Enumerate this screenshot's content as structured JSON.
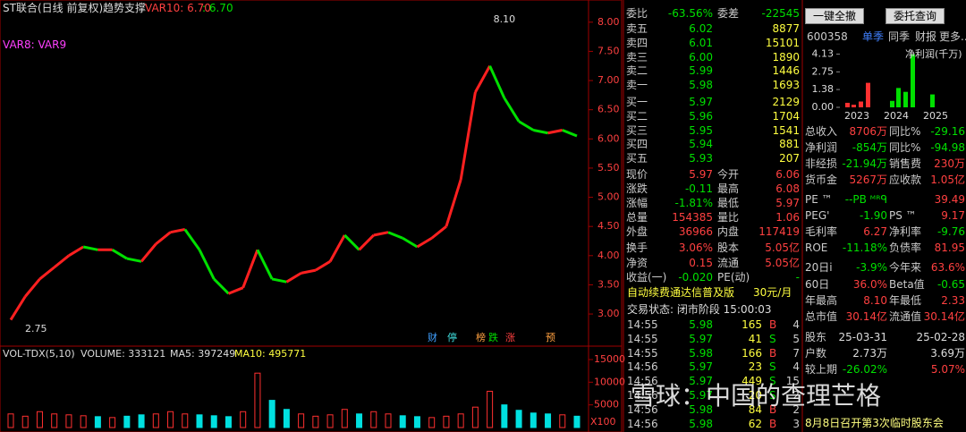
{
  "chart_header": {
    "title": "ST联合(日线 前复权)",
    "indicator": "趋势支撑",
    "var10": "VAR10: 6.70",
    "var10b": ": 6.70",
    "vars": "VAR8: VAR9"
  },
  "price_chart": {
    "type": "line",
    "ylim": [
      2.48,
      8.38
    ],
    "yticks": [
      {
        "value": 8,
        "label": "8.00"
      },
      {
        "value": 7.5,
        "label": "7.50"
      },
      {
        "value": 7,
        "label": "7.00"
      },
      {
        "value": 6.5,
        "label": "6.50"
      },
      {
        "value": 6,
        "label": "6.00"
      },
      {
        "value": 5.5,
        "label": "5.50"
      },
      {
        "value": 5,
        "label": "5.00"
      },
      {
        "value": 4.5,
        "label": "4.50"
      },
      {
        "value": 4,
        "label": "4.00"
      },
      {
        "value": 3.5,
        "label": "3.50"
      },
      {
        "value": 3,
        "label": "3.00"
      }
    ],
    "values": [
      2.9,
      3.3,
      3.6,
      3.8,
      4.0,
      4.15,
      4.1,
      4.1,
      3.95,
      3.9,
      4.2,
      4.4,
      4.45,
      4.1,
      3.6,
      3.35,
      3.45,
      4.1,
      3.6,
      3.55,
      3.7,
      3.75,
      3.9,
      4.35,
      4.1,
      4.35,
      4.4,
      4.3,
      4.15,
      4.3,
      4.5,
      5.3,
      6.8,
      7.25,
      6.7,
      6.3,
      6.15,
      6.1,
      6.15,
      6.05
    ],
    "high_label": "8.10",
    "low_label": "2.75",
    "markers": [
      "财",
      "停",
      "榜",
      "跌",
      "涨",
      "预"
    ]
  },
  "volume_chart": {
    "type": "bar",
    "legend": "VOL-TDX(5,10)",
    "volume": "VOLUME: 333121",
    "ma5": "MA5: 397249",
    "ma10": "MA10: 495771",
    "unit": "X100",
    "ylim": [
      0,
      16380
    ],
    "yticks": [
      5000,
      10000,
      15000
    ],
    "values": [
      3000,
      2500,
      3500,
      3000,
      2800,
      2600,
      2400,
      2200,
      2500,
      2800,
      3000,
      3500,
      3000,
      2800,
      2600,
      2400,
      3500,
      12000,
      6000,
      4000,
      3000,
      2500,
      2800,
      4000,
      3000,
      3500,
      3000,
      2600,
      2400,
      2200,
      2500,
      3000,
      4500,
      8000,
      5000,
      3800,
      3200,
      3000,
      2800,
      2500
    ]
  },
  "order_book": {
    "ratio": [
      "委比",
      "-63.56%",
      "委差",
      "-22545"
    ],
    "sell": [
      [
        "卖五",
        "6.02",
        "8877"
      ],
      [
        "卖四",
        "6.01",
        "15101"
      ],
      [
        "卖三",
        "6.00",
        "1890"
      ],
      [
        "卖二",
        "5.99",
        "1446"
      ],
      [
        "卖一",
        "5.98",
        "1693"
      ]
    ],
    "buy": [
      [
        "买一",
        "5.97",
        "2129"
      ],
      [
        "买二",
        "5.96",
        "1704"
      ],
      [
        "买三",
        "5.95",
        "1541"
      ],
      [
        "买四",
        "5.94",
        "881"
      ],
      [
        "买五",
        "5.93",
        "207"
      ]
    ],
    "quote": [
      [
        "现价",
        "5.97",
        "今开",
        "6.06"
      ],
      [
        "涨跌",
        "-0.11",
        "最高",
        "6.08"
      ],
      [
        "涨幅",
        "-1.81%",
        "最低",
        "5.97"
      ],
      [
        "总量",
        "154385",
        "量比",
        "1.06"
      ],
      [
        "外盘",
        "36966",
        "内盘",
        "117419"
      ]
    ],
    "stats": [
      [
        "换手",
        "3.06%",
        "股本",
        "5.05亿"
      ],
      [
        "净资",
        "0.15",
        "流通",
        "5.05亿"
      ],
      [
        "收益(一)",
        "-0.020",
        "PE(动)",
        "-"
      ]
    ],
    "ad": "自动续费通达信普及版",
    "ad_price": "30元/月",
    "status": "交易状态: 闭市阶段 15:00:03",
    "trades": [
      [
        "14:55",
        "5.98",
        "165",
        "B",
        "4"
      ],
      [
        "14:55",
        "5.97",
        "41",
        "S",
        "5"
      ],
      [
        "14:55",
        "5.98",
        "166",
        "B",
        "7"
      ],
      [
        "14:56",
        "5.97",
        "23",
        "S",
        "4"
      ],
      [
        "14:56",
        "5.97",
        "449",
        "S",
        "15"
      ],
      [
        "14:56",
        "5.97",
        "20",
        "S",
        "2"
      ],
      [
        "14:56",
        "5.98",
        "84",
        "B",
        "2"
      ],
      [
        "14:56",
        "5.98",
        "62",
        "B",
        "3"
      ]
    ]
  },
  "side_panel": {
    "buttons": [
      "一键全撤",
      "委托查询"
    ],
    "code": "600358",
    "tabs": [
      "单季",
      "同季",
      "财报",
      "更多..."
    ],
    "profit_chart": {
      "type": "bar",
      "title": "净利润(千万)",
      "ylim": [
        0,
        4.3
      ],
      "yticks": [
        4.13,
        2.75,
        1.38,
        {
          "value": 0,
          "label": "0.00"
        }
      ],
      "years": [
        "2023",
        "2024",
        "2025"
      ],
      "values": [
        0.35,
        0.2,
        0.45,
        1.9,
        0.5,
        1.5,
        1.2,
        4.1,
        1.0
      ],
      "colors": [
        "#ff3030",
        "#ff3030",
        "#ff3030",
        "#ff3030",
        "#00e000",
        "#00e000",
        "#00e000",
        "#00e000",
        "#00e000"
      ]
    },
    "rows": [
      [
        "总收入",
        "8706万",
        "同比%",
        "-29.16"
      ],
      [
        "净利润",
        "-854万",
        "同比%",
        "-94.98"
      ],
      [
        "非经损",
        "-21.94万",
        "销售费",
        "230万"
      ],
      [
        "货币金",
        "5267万",
        "应收款",
        "1.05亿"
      ],
      [
        "PE ™",
        "--PB ᴹᴿᑫ",
        "",
        "39.49"
      ],
      [
        "PEG'",
        "-1.90",
        "PS ™",
        "9.17"
      ],
      [
        "毛利率",
        "6.27",
        "净利率",
        "-9.76"
      ],
      [
        "ROE",
        "-11.18%",
        "负债率",
        "81.95"
      ],
      [
        "20日i",
        "-3.9%",
        "今年来",
        "63.6%"
      ],
      [
        "60日",
        "36.0%",
        "Beta值",
        "-0.65"
      ],
      [
        "年最高",
        "8.10",
        "年最低",
        "2.33"
      ],
      [
        "总市值",
        "30.14亿",
        "流通值",
        "30.14亿"
      ],
      [
        "股东",
        "25-03-31",
        "",
        "25-02-28"
      ],
      [
        "户数",
        "2.73万",
        "",
        "3.69万"
      ],
      [
        "较上期",
        "-26.02%",
        "",
        "5.07%"
      ]
    ],
    "notice": "8月8日召开第3次临时股东会"
  },
  "watermark": "雪球：中国的查理芒格"
}
